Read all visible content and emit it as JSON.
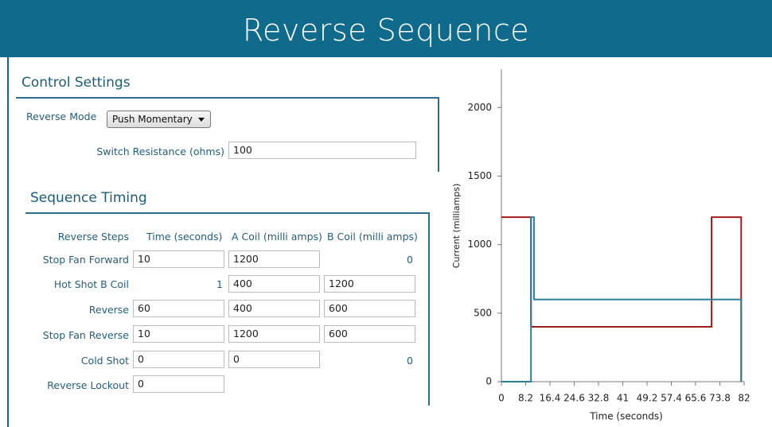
{
  "header": {
    "title": "Reverse Sequence"
  },
  "control": {
    "title": "Control Settings",
    "reverse_mode_label": "Reverse Mode",
    "reverse_mode_value": "Push Momentary",
    "switch_resistance_label": "Switch Resistance (ohms)",
    "switch_resistance_value": 100
  },
  "sequence": {
    "title": "Sequence Timing",
    "columns": [
      "Reverse Steps",
      "Time (seconds)",
      "A Coil (milli amps)",
      "B Coil (milli amps)"
    ],
    "rows": [
      {
        "step": "Stop Fan Forward",
        "time": 10,
        "a_coil": 1200,
        "b_coil": 0
      },
      {
        "step": "Hot Shot B Coil",
        "time": 1,
        "a_coil": 400,
        "b_coil": 1200
      },
      {
        "step": "Reverse",
        "time": 60,
        "a_coil": 400,
        "b_coil": 600
      },
      {
        "step": "Stop Fan Reverse",
        "time": 10,
        "a_coil": 1200,
        "b_coil": 600
      },
      {
        "step": "Cold Shot",
        "time": 0,
        "a_coil": 0,
        "b_coil": 0
      },
      {
        "step": "Reverse Lockout",
        "time": 0
      }
    ]
  },
  "chart_data": {
    "type": "line",
    "xlabel": "Time (seconds)",
    "ylabel": "Current (milliamps)",
    "xlim": [
      0,
      82
    ],
    "xticks": [
      0,
      8.2,
      16.4,
      24.6,
      32.8,
      41,
      49.2,
      57.4,
      65.6,
      73.8,
      82
    ],
    "ylim": [
      0,
      2280
    ],
    "yticks": [
      0,
      500,
      1000,
      1500,
      2000
    ],
    "series": [
      {
        "color": "#a31c1c",
        "x": [
          0,
          10,
          10,
          71,
          71,
          81,
          81
        ],
        "values": [
          1200,
          1200,
          400,
          400,
          1200,
          1200,
          0
        ]
      },
      {
        "color": "#2a7f9e",
        "x": [
          0,
          10,
          10,
          11,
          11,
          81,
          81
        ],
        "values": [
          0,
          0,
          1200,
          1200,
          600,
          600,
          0
        ]
      }
    ]
  }
}
